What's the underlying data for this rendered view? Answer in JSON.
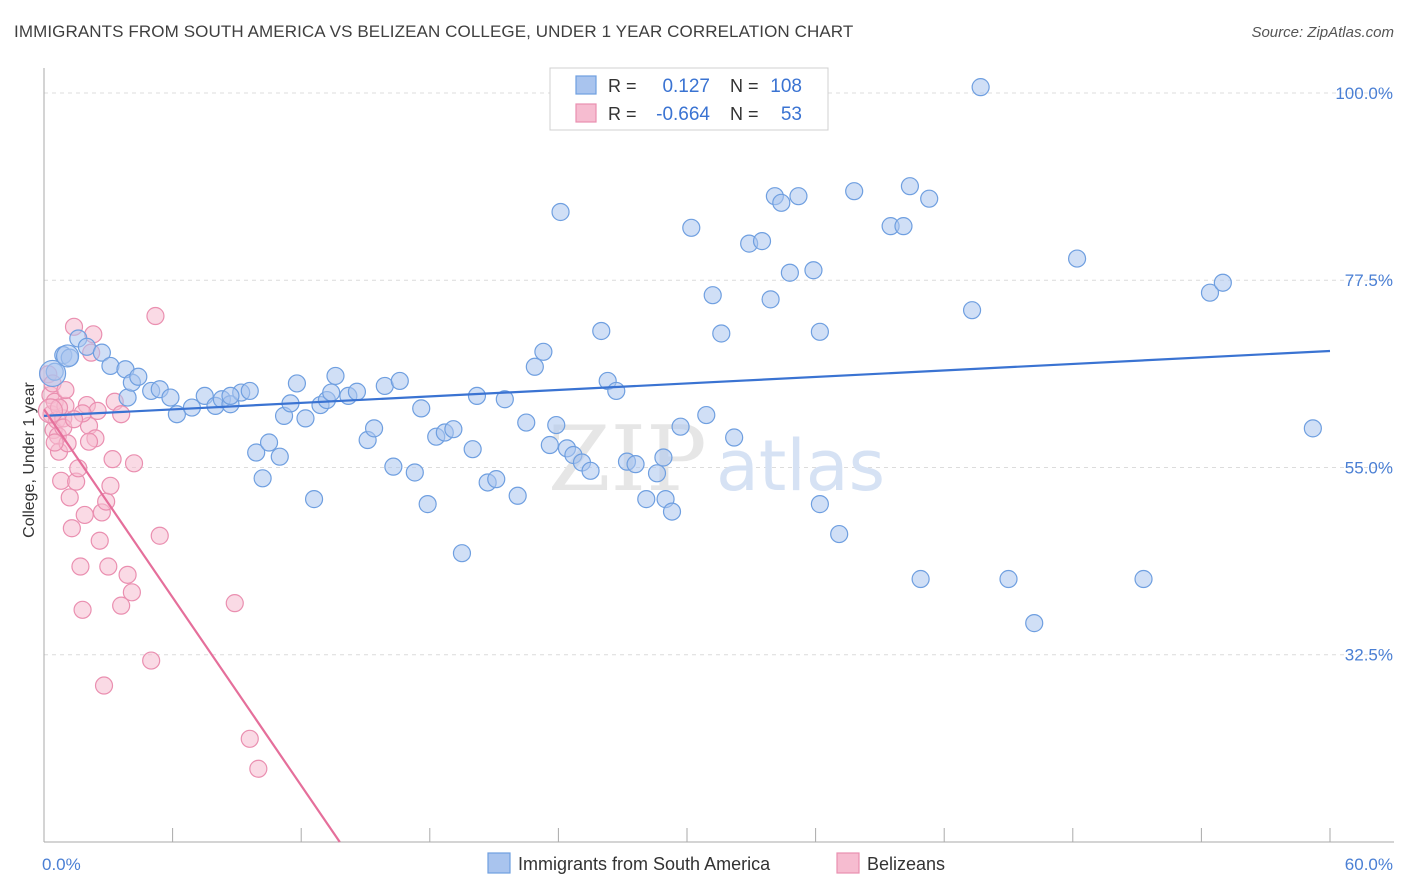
{
  "header": {
    "title": "IMMIGRANTS FROM SOUTH AMERICA VS BELIZEAN COLLEGE, UNDER 1 YEAR CORRELATION CHART",
    "source": "Source: ZipAtlas.com"
  },
  "watermark": {
    "zip": "ZIP",
    "atlas": "atlas"
  },
  "stats": {
    "r_label": "R =",
    "n_label": "N =",
    "rows": [
      {
        "r": "0.127",
        "n": "108",
        "color": "#6f9fe0"
      },
      {
        "r": "-0.664",
        "n": "53",
        "color": "#f09cb9"
      }
    ]
  },
  "colors": {
    "blue_fill": "#a9c4ee",
    "blue_stroke": "#6f9fe0",
    "blue_line": "#3a73d2",
    "pink_fill": "#f6bcd0",
    "pink_stroke": "#ea8fb0",
    "pink_line": "#e56f9b",
    "tick_text": "#4a7fd4",
    "grid": "#dcdcdc"
  },
  "chart_data": {
    "type": "scatter",
    "title": "IMMIGRANTS FROM SOUTH AMERICA VS BELIZEAN COLLEGE, UNDER 1 YEAR CORRELATION CHART",
    "xlabel": "",
    "ylabel": "College, Under 1 year",
    "xlim": [
      0,
      60
    ],
    "ylim": [
      10,
      103
    ],
    "x_tick_labels": [
      "0.0%",
      "60.0%"
    ],
    "y_ticks": [
      32.5,
      55.0,
      77.5,
      100.0
    ],
    "y_tick_labels": [
      "32.5%",
      "55.0%",
      "77.5%",
      "100.0%"
    ],
    "legend": [
      "Immigrants from South America",
      "Belizeans"
    ],
    "series": [
      {
        "name": "Immigrants from South America",
        "points": [
          [
            0.5,
            66.5
          ],
          [
            0.9,
            68.5
          ],
          [
            1.2,
            68.2
          ],
          [
            1.6,
            70.5
          ],
          [
            2.0,
            69.5
          ],
          [
            2.7,
            68.8
          ],
          [
            3.1,
            67.2
          ],
          [
            3.8,
            66.8
          ],
          [
            3.9,
            63.4
          ],
          [
            4.1,
            65.2
          ],
          [
            4.4,
            65.9
          ],
          [
            5.0,
            64.2
          ],
          [
            5.4,
            64.4
          ],
          [
            5.9,
            63.4
          ],
          [
            6.2,
            61.4
          ],
          [
            6.9,
            62.2
          ],
          [
            7.5,
            63.6
          ],
          [
            8.0,
            62.4
          ],
          [
            8.3,
            63.2
          ],
          [
            8.7,
            62.6
          ],
          [
            9.2,
            64.0
          ],
          [
            8.7,
            63.6
          ],
          [
            9.6,
            64.2
          ],
          [
            9.9,
            56.8
          ],
          [
            10.2,
            53.7
          ],
          [
            10.5,
            58.0
          ],
          [
            11.0,
            56.3
          ],
          [
            11.2,
            61.2
          ],
          [
            11.5,
            62.7
          ],
          [
            11.8,
            65.1
          ],
          [
            12.2,
            60.9
          ],
          [
            12.6,
            51.2
          ],
          [
            12.9,
            62.5
          ],
          [
            13.2,
            63.1
          ],
          [
            13.4,
            64.0
          ],
          [
            13.6,
            66.0
          ],
          [
            14.2,
            63.6
          ],
          [
            14.6,
            64.1
          ],
          [
            15.1,
            58.3
          ],
          [
            15.4,
            59.7
          ],
          [
            15.9,
            64.8
          ],
          [
            16.6,
            65.4
          ],
          [
            16.3,
            55.1
          ],
          [
            17.3,
            54.4
          ],
          [
            17.6,
            62.1
          ],
          [
            17.9,
            50.6
          ],
          [
            18.3,
            58.7
          ],
          [
            18.7,
            59.2
          ],
          [
            19.1,
            59.6
          ],
          [
            19.5,
            44.7
          ],
          [
            20.0,
            57.2
          ],
          [
            20.2,
            63.6
          ],
          [
            20.7,
            53.2
          ],
          [
            21.1,
            53.6
          ],
          [
            21.5,
            63.2
          ],
          [
            22.1,
            51.6
          ],
          [
            22.5,
            60.4
          ],
          [
            22.9,
            67.1
          ],
          [
            23.3,
            68.9
          ],
          [
            23.6,
            57.7
          ],
          [
            23.9,
            60.1
          ],
          [
            24.1,
            85.7
          ],
          [
            24.4,
            57.3
          ],
          [
            24.7,
            56.5
          ],
          [
            25.1,
            55.6
          ],
          [
            25.5,
            54.6
          ],
          [
            26.0,
            71.4
          ],
          [
            26.3,
            65.4
          ],
          [
            26.7,
            64.2
          ],
          [
            27.2,
            55.7
          ],
          [
            27.6,
            55.4
          ],
          [
            28.1,
            51.2
          ],
          [
            28.6,
            54.3
          ],
          [
            29.0,
            51.2
          ],
          [
            29.3,
            49.7
          ],
          [
            28.9,
            56.2
          ],
          [
            29.7,
            59.9
          ],
          [
            30.2,
            83.8
          ],
          [
            30.9,
            61.3
          ],
          [
            31.2,
            75.7
          ],
          [
            31.6,
            71.1
          ],
          [
            32.2,
            58.6
          ],
          [
            32.9,
            81.9
          ],
          [
            33.9,
            75.2
          ],
          [
            34.1,
            87.6
          ],
          [
            33.5,
            82.2
          ],
          [
            34.4,
            86.8
          ],
          [
            35.2,
            87.6
          ],
          [
            34.8,
            78.4
          ],
          [
            35.9,
            78.7
          ],
          [
            36.2,
            71.3
          ],
          [
            36.2,
            50.6
          ],
          [
            37.1,
            47.0
          ],
          [
            37.8,
            88.2
          ],
          [
            39.5,
            84.0
          ],
          [
            40.1,
            84.0
          ],
          [
            40.4,
            88.8
          ],
          [
            41.3,
            87.3
          ],
          [
            40.9,
            41.6
          ],
          [
            43.3,
            73.9
          ],
          [
            43.7,
            100.7
          ],
          [
            45.0,
            41.6
          ],
          [
            46.2,
            36.3
          ],
          [
            48.2,
            80.1
          ],
          [
            51.3,
            41.6
          ],
          [
            54.4,
            76.0
          ],
          [
            55.0,
            77.2
          ],
          [
            59.2,
            59.7
          ]
        ]
      },
      {
        "name": "Belizeans",
        "points": [
          [
            0.2,
            66.2
          ],
          [
            0.3,
            63.7
          ],
          [
            0.35,
            61.4
          ],
          [
            0.4,
            65.1
          ],
          [
            0.45,
            59.5
          ],
          [
            0.5,
            62.9
          ],
          [
            0.6,
            60.7
          ],
          [
            0.65,
            58.8
          ],
          [
            0.7,
            56.9
          ],
          [
            0.8,
            53.4
          ],
          [
            0.9,
            60.9
          ],
          [
            1.0,
            62.4
          ],
          [
            1.1,
            57.9
          ],
          [
            1.2,
            51.4
          ],
          [
            1.3,
            47.7
          ],
          [
            1.4,
            71.9
          ],
          [
            1.5,
            53.3
          ],
          [
            1.6,
            54.9
          ],
          [
            1.7,
            43.1
          ],
          [
            1.8,
            37.9
          ],
          [
            1.9,
            49.3
          ],
          [
            2.0,
            62.5
          ],
          [
            2.1,
            60.0
          ],
          [
            2.2,
            68.8
          ],
          [
            2.3,
            71.0
          ],
          [
            2.4,
            58.5
          ],
          [
            2.5,
            61.8
          ],
          [
            2.6,
            46.2
          ],
          [
            2.7,
            49.6
          ],
          [
            2.8,
            28.8
          ],
          [
            2.9,
            50.9
          ],
          [
            3.0,
            43.1
          ],
          [
            3.1,
            52.8
          ],
          [
            3.2,
            56.0
          ],
          [
            3.3,
            62.9
          ],
          [
            3.6,
            38.4
          ],
          [
            3.9,
            42.1
          ],
          [
            4.1,
            40.0
          ],
          [
            4.2,
            55.5
          ],
          [
            5.0,
            31.8
          ],
          [
            5.2,
            73.2
          ],
          [
            5.4,
            46.8
          ],
          [
            8.9,
            38.7
          ],
          [
            9.6,
            22.4
          ],
          [
            10.0,
            18.8
          ],
          [
            1.0,
            64.3
          ],
          [
            0.7,
            62.2
          ],
          [
            1.8,
            61.5
          ],
          [
            0.9,
            59.8
          ],
          [
            2.1,
            58.1
          ],
          [
            3.6,
            61.4
          ],
          [
            0.5,
            58.0
          ],
          [
            1.4,
            60.8
          ]
        ]
      }
    ],
    "trend_lines": [
      {
        "name": "Immigrants from South America",
        "from": [
          0,
          61.2
        ],
        "to": [
          60,
          69.0
        ]
      },
      {
        "name": "Belizeans",
        "from": [
          0,
          62.0
        ],
        "to": [
          13.8,
          10.0
        ]
      }
    ]
  }
}
